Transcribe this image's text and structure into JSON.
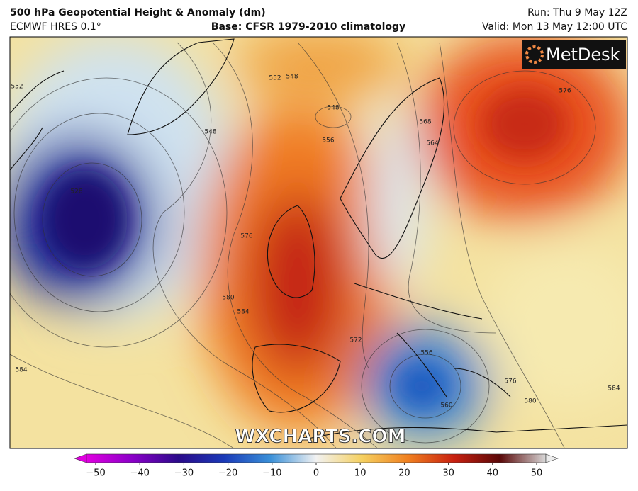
{
  "header": {
    "title": "500 hPa Geopotential Height & Anomaly (dm)",
    "model": "ECMWF HRES 0.1°",
    "base": "Base: CFSR 1979-2010 climatology",
    "run": "Run: Thu 9 May 12Z",
    "valid": "Valid: Mon 13 May 12:00 UTC"
  },
  "map": {
    "logo": "MetDesk",
    "watermark": "WXCHARTS.COM",
    "contour_labels": [
      "552",
      "548",
      "552",
      "548",
      "548",
      "556",
      "568",
      "564",
      "576",
      "528",
      "576",
      "580",
      "584",
      "572",
      "584",
      "556",
      "560",
      "576",
      "580",
      "584"
    ]
  },
  "colorbar": {
    "ticks": [
      {
        "value": -50,
        "label": "−50"
      },
      {
        "value": -40,
        "label": "−40"
      },
      {
        "value": -30,
        "label": "−30"
      },
      {
        "value": -20,
        "label": "−20"
      },
      {
        "value": -10,
        "label": "−10"
      },
      0,
      10,
      20,
      30,
      40,
      50
    ]
  }
}
